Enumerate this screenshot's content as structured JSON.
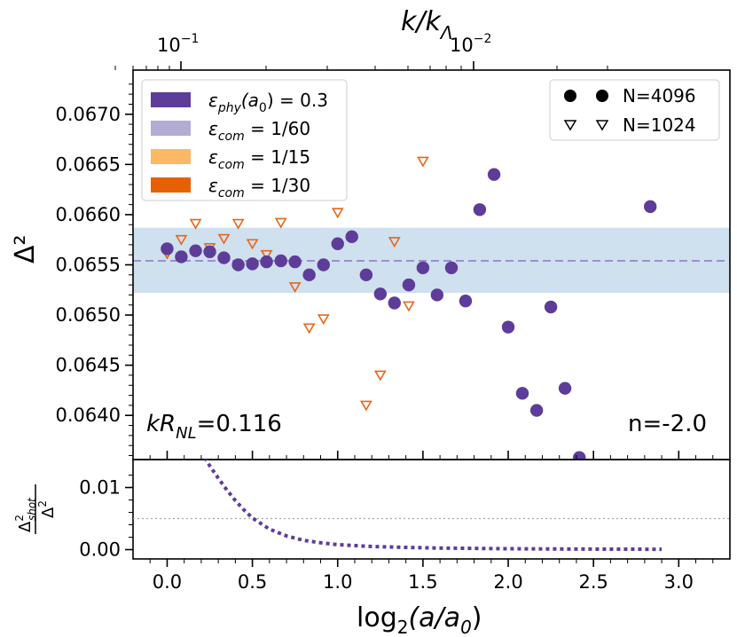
{
  "chart_data": {
    "type": "scatter",
    "top_panel": {
      "ylabel": "Δ²",
      "ylim": [
        0.06356,
        0.06744
      ],
      "yticks": [
        {
          "value": 0.064,
          "label": "0.0640"
        },
        {
          "value": 0.0645,
          "label": "0.0645"
        },
        {
          "value": 0.065,
          "label": "0.0650"
        },
        {
          "value": 0.0655,
          "label": "0.0655"
        },
        {
          "value": 0.066,
          "label": "0.0660"
        },
        {
          "value": 0.0665,
          "label": "0.0665"
        },
        {
          "value": 0.067,
          "label": "0.0670"
        }
      ],
      "band": {
        "low": 0.06522,
        "high": 0.06587,
        "color": "#cfe0ee"
      },
      "mean_line": {
        "value": 0.06554,
        "color": "#9e8fcf"
      },
      "series": [
        {
          "name": "N=4096",
          "marker": "filled-circle",
          "color": "#5e3c99",
          "x": [
            0.0,
            0.083,
            0.167,
            0.25,
            0.333,
            0.417,
            0.5,
            0.583,
            0.667,
            0.75,
            0.833,
            0.917,
            1.0,
            1.083,
            1.167,
            1.25,
            1.333,
            1.417,
            1.5,
            1.583,
            1.667,
            1.75,
            1.833,
            1.917,
            2.0,
            2.083,
            2.167,
            2.25,
            2.333,
            2.417,
            2.833
          ],
          "y": [
            0.06566,
            0.06558,
            0.06564,
            0.06563,
            0.06557,
            0.0655,
            0.06551,
            0.06553,
            0.06554,
            0.06553,
            0.0654,
            0.0655,
            0.06571,
            0.06578,
            0.0654,
            0.06521,
            0.06512,
            0.0653,
            0.06547,
            0.0652,
            0.06547,
            0.06514,
            0.06605,
            0.0664,
            0.06488,
            0.06422,
            0.06405,
            0.06508,
            0.06427,
            0.06358,
            0.06608
          ]
        },
        {
          "name": "N=1024",
          "marker": "open-triangle-down",
          "color": "#e6661a",
          "x": [
            0.0,
            0.083,
            0.167,
            0.25,
            0.333,
            0.417,
            0.5,
            0.583,
            0.667,
            0.75,
            0.833,
            0.917,
            1.0,
            1.167,
            1.25,
            1.333,
            1.417,
            1.5
          ],
          "y": [
            0.06561,
            0.06575,
            0.06591,
            0.06567,
            0.06576,
            0.06591,
            0.06571,
            0.0656,
            0.06592,
            0.06528,
            0.06487,
            0.06496,
            0.06602,
            0.0641,
            0.0644,
            0.06573,
            0.06509,
            0.06653
          ]
        }
      ],
      "legend_left": [
        {
          "prefix": "ε",
          "sub": "phy",
          "suffix": "(a",
          "sub2": "0",
          "tail": ") = 0.3",
          "color": "#5e3c99"
        },
        {
          "prefix": "ε",
          "sub": "com",
          "tail": " = 1/60",
          "color": "#b2abd2"
        },
        {
          "prefix": "ε",
          "sub": "com",
          "tail": " = 1/15",
          "color": "#fdb863"
        },
        {
          "prefix": "ε",
          "sub": "com",
          "tail": " = 1/30",
          "color": "#e66101"
        }
      ],
      "legend_right": [
        {
          "label": "N=4096"
        },
        {
          "label": "N=1024"
        }
      ],
      "annotation_left": {
        "prefix": "kR",
        "sub": "NL",
        "tail": "=0.116"
      },
      "annotation_right": "n=-2.0",
      "top_axis": {
        "label": "k/k",
        "label_sub": "Λ",
        "ticks": [
          {
            "base": "10",
            "exp": "−1"
          },
          {
            "base": "10",
            "exp": "−2"
          }
        ]
      }
    },
    "bottom_panel": {
      "ylabel_num": "Δ",
      "ylabel_num_sup": "2",
      "ylabel_num_sub": "shot",
      "ylabel_den": "Δ",
      "ylabel_den_sup": "2",
      "ylim": [
        -0.0015,
        0.0145
      ],
      "yticks": [
        {
          "value": 0.0,
          "label": "0.00"
        },
        {
          "value": 0.01,
          "label": "0.01"
        }
      ],
      "reference_line": 0.005,
      "curve_color": "#5e3c99",
      "curve": {
        "x": [
          0.22,
          0.25,
          0.3,
          0.35,
          0.4,
          0.45,
          0.5,
          0.6,
          0.7,
          0.8,
          0.9,
          1.0,
          1.2,
          1.4,
          1.6,
          1.8,
          2.0,
          2.3,
          2.6,
          2.9
        ],
        "y": [
          0.0148,
          0.0135,
          0.0115,
          0.0096,
          0.0079,
          0.0064,
          0.0051,
          0.0033,
          0.0022,
          0.0015,
          0.0011,
          0.0008,
          0.0005,
          0.00035,
          0.00025,
          0.0002,
          0.00015,
          0.0001,
          7e-05,
          5e-05
        ]
      }
    },
    "x_axis": {
      "label_prefix": "log",
      "label_sub": "2",
      "label_suffix": "(a/a",
      "label_sub2": "0",
      "label_tail": ")",
      "xlim": [
        -0.2,
        3.3
      ],
      "ticks": [
        {
          "value": 0.0,
          "label": "0.0"
        },
        {
          "value": 0.5,
          "label": "0.5"
        },
        {
          "value": 1.0,
          "label": "1.0"
        },
        {
          "value": 1.5,
          "label": "1.5"
        },
        {
          "value": 2.0,
          "label": "2.0"
        },
        {
          "value": 2.5,
          "label": "2.5"
        },
        {
          "value": 3.0,
          "label": "3.0"
        }
      ]
    }
  }
}
